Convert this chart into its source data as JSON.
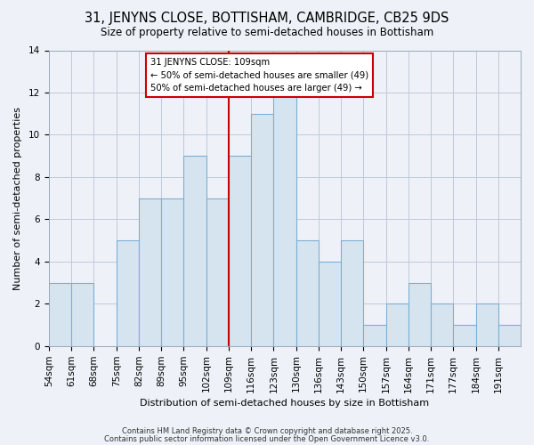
{
  "title": "31, JENYNS CLOSE, BOTTISHAM, CAMBRIDGE, CB25 9DS",
  "subtitle": "Size of property relative to semi-detached houses in Bottisham",
  "xlabel": "Distribution of semi-detached houses by size in Bottisham",
  "ylabel": "Number of semi-detached properties",
  "bin_labels": [
    "54sqm",
    "61sqm",
    "68sqm",
    "75sqm",
    "82sqm",
    "89sqm",
    "95sqm",
    "102sqm",
    "109sqm",
    "116sqm",
    "123sqm",
    "130sqm",
    "136sqm",
    "143sqm",
    "150sqm",
    "157sqm",
    "164sqm",
    "171sqm",
    "177sqm",
    "184sqm",
    "191sqm"
  ],
  "bin_edges": [
    0,
    1,
    2,
    3,
    4,
    5,
    6,
    7,
    8,
    9,
    10,
    11,
    12,
    13,
    14,
    15,
    16,
    17,
    18,
    19,
    20,
    21
  ],
  "counts": [
    3,
    3,
    0,
    5,
    7,
    7,
    9,
    7,
    9,
    11,
    12,
    5,
    4,
    5,
    1,
    2,
    3,
    2,
    1,
    2,
    1
  ],
  "bar_color": "#d6e4f0",
  "bar_edgecolor": "#7bafd4",
  "vline_x": 8,
  "vline_color": "#cc0000",
  "annotation_title": "31 JENYNS CLOSE: 109sqm",
  "annotation_line1": "← 50% of semi-detached houses are smaller (49)",
  "annotation_line2": "50% of semi-detached houses are larger (49) →",
  "annotation_box_edgecolor": "#cc0000",
  "annotation_box_facecolor": "#ffffff",
  "ylim": [
    0,
    14
  ],
  "yticks": [
    0,
    2,
    4,
    6,
    8,
    10,
    12,
    14
  ],
  "footer1": "Contains HM Land Registry data © Crown copyright and database right 2025.",
  "footer2": "Contains public sector information licensed under the Open Government Licence v3.0.",
  "background_color": "#eef2f8",
  "grid_color": "#c0c8d8",
  "title_fontsize": 10.5,
  "subtitle_fontsize": 8.5,
  "axis_label_fontsize": 8,
  "tick_fontsize": 7.5
}
